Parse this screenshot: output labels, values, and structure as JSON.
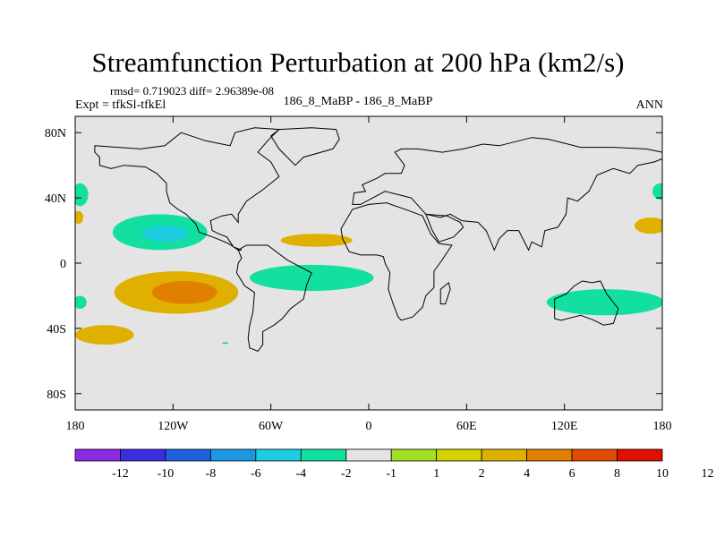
{
  "chart_data": {
    "type": "contour-map",
    "title": "Streamfunction Perturbation at 200 hPa (km2/s)",
    "rmsd_line": "rmsd= 0.719023 diff= 2.96389e-08",
    "left_label": "Expt = tfkSl-tfkEl",
    "center_label": "186_8_MaBP - 186_8_MaBP",
    "right_label": "ANN",
    "x_axis": {
      "range": [
        -180,
        180
      ],
      "ticks": [
        {
          "value": -180,
          "label": "180"
        },
        {
          "value": -120,
          "label": "120W"
        },
        {
          "value": -60,
          "label": "60W"
        },
        {
          "value": 0,
          "label": "0"
        },
        {
          "value": 60,
          "label": "60E"
        },
        {
          "value": 120,
          "label": "120E"
        },
        {
          "value": 180,
          "label": "180"
        }
      ]
    },
    "y_axis": {
      "range": [
        -90,
        90
      ],
      "ticks": [
        {
          "value": 80,
          "label": "80N"
        },
        {
          "value": 40,
          "label": "40N"
        },
        {
          "value": 0,
          "label": "0"
        },
        {
          "value": -40,
          "label": "40S"
        },
        {
          "value": -80,
          "label": "80S"
        }
      ]
    },
    "colorbar": {
      "colors": [
        "#8b2be2",
        "#3a2ee0",
        "#1f60df",
        "#1e97e3",
        "#1fcde0",
        "#12e0a0",
        "#e4e4e4",
        "#a0e020",
        "#d2d200",
        "#e0b000",
        "#e07f00",
        "#e04c00",
        "#e00f00"
      ],
      "labels": [
        "-12",
        "-10",
        "-8",
        "-6",
        "-4",
        "-2",
        "-1",
        "1",
        "2",
        "4",
        "6",
        "8",
        "10",
        "12"
      ]
    },
    "anomalies": [
      {
        "name": "north-pacific-low",
        "lon": -128,
        "lat": 19,
        "rx": 29,
        "ry": 11,
        "level": "-2"
      },
      {
        "name": "north-pacific-low-core",
        "lon": -125,
        "lat": 18,
        "rx": 14,
        "ry": 5,
        "level": "-4"
      },
      {
        "name": "south-pacific-high",
        "lon": -118,
        "lat": -18,
        "rx": 38,
        "ry": 13,
        "level": "2"
      },
      {
        "name": "south-pacific-high-core",
        "lon": -113,
        "lat": -18,
        "rx": 20,
        "ry": 7,
        "level": "4"
      },
      {
        "name": "south-pacific-tail",
        "lon": -162,
        "lat": -44,
        "rx": 18,
        "ry": 6,
        "level": "2"
      },
      {
        "name": "north-atlantic-high",
        "lon": -32,
        "lat": 14,
        "rx": 22,
        "ry": 4,
        "level": "2"
      },
      {
        "name": "tropical-atlantic-low",
        "lon": -35,
        "lat": -9,
        "rx": 38,
        "ry": 8,
        "level": "-2"
      },
      {
        "name": "indian-pacific-low",
        "lon": 145,
        "lat": -24,
        "rx": 36,
        "ry": 8,
        "level": "-2"
      },
      {
        "name": "dateline-low-north",
        "lon": -177,
        "lat": 42,
        "rx": 5,
        "ry": 7,
        "level": "-2"
      },
      {
        "name": "dateline-high-north",
        "lon": -178,
        "lat": 28,
        "rx": 3,
        "ry": 4,
        "level": "2"
      },
      {
        "name": "dateline-low-south",
        "lon": -177,
        "lat": -24,
        "rx": 4,
        "ry": 4,
        "level": "-2"
      },
      {
        "name": "east-dateline-low-north",
        "lon": 179,
        "lat": 44,
        "rx": 5,
        "ry": 5,
        "level": "-2"
      },
      {
        "name": "east-dateline-high",
        "lon": 173,
        "lat": 23,
        "rx": 10,
        "ry": 5,
        "level": "2"
      },
      {
        "name": "southern-ocean-speck",
        "lon": -88,
        "lat": -49,
        "rx": 2,
        "ry": 0.6,
        "level": "-2"
      }
    ],
    "continents": [
      {
        "name": "north-america",
        "points": [
          [
            -168,
            72
          ],
          [
            -140,
            70
          ],
          [
            -125,
            72
          ],
          [
            -115,
            80
          ],
          [
            -100,
            75
          ],
          [
            -85,
            72
          ],
          [
            -82,
            80
          ],
          [
            -70,
            83
          ],
          [
            -55,
            82
          ],
          [
            -62,
            75
          ],
          [
            -68,
            68
          ],
          [
            -60,
            62
          ],
          [
            -55,
            53
          ],
          [
            -65,
            45
          ],
          [
            -75,
            38
          ],
          [
            -80,
            30
          ],
          [
            -80,
            25
          ],
          [
            -84,
            30
          ],
          [
            -90,
            29
          ],
          [
            -97,
            26
          ],
          [
            -96,
            20
          ],
          [
            -92,
            18
          ],
          [
            -87,
            16
          ],
          [
            -83,
            10
          ],
          [
            -78,
            8
          ],
          [
            -80,
            8
          ],
          [
            -86,
            12
          ],
          [
            -93,
            15
          ],
          [
            -104,
            19
          ],
          [
            -106,
            24
          ],
          [
            -112,
            30
          ],
          [
            -117,
            33
          ],
          [
            -122,
            37
          ],
          [
            -124,
            44
          ],
          [
            -124,
            49
          ],
          [
            -130,
            55
          ],
          [
            -137,
            59
          ],
          [
            -150,
            60
          ],
          [
            -158,
            58
          ],
          [
            -165,
            60
          ],
          [
            -165,
            65
          ],
          [
            -168,
            68
          ]
        ]
      },
      {
        "name": "greenland",
        "points": [
          [
            -45,
            60
          ],
          [
            -40,
            65
          ],
          [
            -22,
            70
          ],
          [
            -18,
            76
          ],
          [
            -20,
            82
          ],
          [
            -35,
            83
          ],
          [
            -55,
            82
          ],
          [
            -60,
            78
          ],
          [
            -55,
            70
          ],
          [
            -50,
            65
          ]
        ]
      },
      {
        "name": "south-america",
        "points": [
          [
            -80,
            8
          ],
          [
            -75,
            11
          ],
          [
            -62,
            11
          ],
          [
            -50,
            2
          ],
          [
            -35,
            -6
          ],
          [
            -38,
            -13
          ],
          [
            -40,
            -22
          ],
          [
            -48,
            -28
          ],
          [
            -53,
            -34
          ],
          [
            -58,
            -38
          ],
          [
            -65,
            -42
          ],
          [
            -65,
            -50
          ],
          [
            -68,
            -54
          ],
          [
            -73,
            -52
          ],
          [
            -74,
            -46
          ],
          [
            -73,
            -38
          ],
          [
            -71,
            -30
          ],
          [
            -70,
            -18
          ],
          [
            -76,
            -14
          ],
          [
            -81,
            -6
          ],
          [
            -80,
            0
          ],
          [
            -78,
            3
          ]
        ]
      },
      {
        "name": "eurasia",
        "points": [
          [
            -10,
            36
          ],
          [
            -9,
            43
          ],
          [
            -2,
            44
          ],
          [
            -4,
            48
          ],
          [
            5,
            52
          ],
          [
            10,
            55
          ],
          [
            20,
            55
          ],
          [
            22,
            60
          ],
          [
            16,
            68
          ],
          [
            20,
            70
          ],
          [
            30,
            70
          ],
          [
            45,
            68
          ],
          [
            58,
            70
          ],
          [
            70,
            73
          ],
          [
            80,
            72
          ],
          [
            100,
            77
          ],
          [
            110,
            76
          ],
          [
            130,
            71
          ],
          [
            150,
            71
          ],
          [
            170,
            70
          ],
          [
            180,
            68
          ],
          [
            180,
            64
          ],
          [
            175,
            62
          ],
          [
            165,
            60
          ],
          [
            160,
            55
          ],
          [
            150,
            58
          ],
          [
            140,
            54
          ],
          [
            135,
            44
          ],
          [
            128,
            38
          ],
          [
            122,
            40
          ],
          [
            121,
            30
          ],
          [
            116,
            22
          ],
          [
            108,
            20
          ],
          [
            106,
            10
          ],
          [
            100,
            13
          ],
          [
            98,
            8
          ],
          [
            92,
            20
          ],
          [
            85,
            20
          ],
          [
            80,
            15
          ],
          [
            77,
            8
          ],
          [
            72,
            20
          ],
          [
            67,
            25
          ],
          [
            57,
            26
          ],
          [
            50,
            30
          ],
          [
            44,
            28
          ],
          [
            35,
            30
          ],
          [
            26,
            40
          ],
          [
            10,
            44
          ],
          [
            -5,
            36
          ]
        ]
      },
      {
        "name": "africa",
        "points": [
          [
            -17,
            21
          ],
          [
            -16,
            15
          ],
          [
            -12,
            7
          ],
          [
            -5,
            5
          ],
          [
            5,
            5
          ],
          [
            9,
            4
          ],
          [
            10,
            0
          ],
          [
            13,
            -6
          ],
          [
            12,
            -16
          ],
          [
            15,
            -25
          ],
          [
            18,
            -33
          ],
          [
            20,
            -35
          ],
          [
            27,
            -33
          ],
          [
            33,
            -27
          ],
          [
            35,
            -20
          ],
          [
            40,
            -15
          ],
          [
            40,
            -5
          ],
          [
            45,
            2
          ],
          [
            51,
            11
          ],
          [
            43,
            12
          ],
          [
            38,
            18
          ],
          [
            33,
            29
          ],
          [
            25,
            32
          ],
          [
            11,
            37
          ],
          [
            0,
            36
          ],
          [
            -10,
            33
          ]
        ]
      },
      {
        "name": "arabia",
        "points": [
          [
            35,
            30
          ],
          [
            39,
            20
          ],
          [
            43,
            13
          ],
          [
            52,
            16
          ],
          [
            58,
            22
          ],
          [
            56,
            25
          ],
          [
            48,
            29
          ]
        ]
      },
      {
        "name": "australia",
        "points": [
          [
            114,
            -22
          ],
          [
            114,
            -34
          ],
          [
            118,
            -35
          ],
          [
            130,
            -32
          ],
          [
            138,
            -35
          ],
          [
            144,
            -38
          ],
          [
            150,
            -37
          ],
          [
            153,
            -28
          ],
          [
            146,
            -19
          ],
          [
            142,
            -11
          ],
          [
            137,
            -12
          ],
          [
            131,
            -11
          ],
          [
            126,
            -14
          ],
          [
            121,
            -19
          ]
        ]
      },
      {
        "name": "madagascar",
        "points": [
          [
            44,
            -25
          ],
          [
            47,
            -25
          ],
          [
            50,
            -16
          ],
          [
            49,
            -12
          ],
          [
            44,
            -16
          ]
        ]
      }
    ]
  }
}
